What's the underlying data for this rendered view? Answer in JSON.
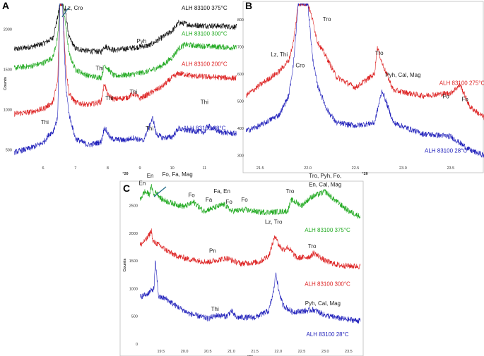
{
  "colors": {
    "black": "#111111",
    "green": "#22aa22",
    "red": "#dd2222",
    "blue": "#2222bb",
    "leader": "#1e6a86"
  },
  "chart_data": [
    {
      "panel": "A",
      "type": "line",
      "xlabel": "°2θ",
      "ylabel": "Counts",
      "xlim": [
        5.1,
        12.0
      ],
      "ylim": [
        330,
        2320
      ],
      "xticks": [
        "6",
        "7",
        "8",
        "9",
        "10",
        "11"
      ],
      "yticks": [
        "500",
        "1000",
        "1500",
        "2000"
      ],
      "series": [
        {
          "name": "ALH 83100 375°C",
          "color": "black",
          "base": 1650,
          "label_x": 11.0,
          "label_y": 2240,
          "x": [
            5.1,
            5.6,
            6.0,
            6.3,
            6.45,
            6.52,
            6.6,
            6.7,
            6.8,
            7.0,
            7.4,
            7.8,
            7.9,
            8.2,
            8.8,
            9.3,
            9.7,
            10.0,
            10.2,
            10.4,
            10.6,
            11.0,
            11.5,
            12.0
          ],
          "y": [
            1750,
            1780,
            1820,
            1890,
            2150,
            2320,
            2320,
            2200,
            1900,
            1760,
            1730,
            1720,
            1790,
            1740,
            1770,
            1800,
            1900,
            1980,
            2080,
            2070,
            2050,
            2045,
            2040,
            2030
          ]
        },
        {
          "name": "ALH 83100 300°C",
          "color": "green",
          "base": 1380,
          "label_x": 11.0,
          "label_y": 1920,
          "x": [
            5.1,
            5.6,
            6.0,
            6.3,
            6.45,
            6.52,
            6.6,
            6.7,
            6.8,
            7.0,
            7.4,
            7.8,
            7.9,
            8.2,
            8.8,
            9.3,
            9.7,
            10.0,
            10.2,
            10.4,
            10.6,
            11.0,
            11.5,
            12.0
          ],
          "y": [
            1520,
            1540,
            1580,
            1650,
            1900,
            2320,
            2320,
            2050,
            1700,
            1500,
            1420,
            1400,
            1560,
            1420,
            1440,
            1480,
            1550,
            1650,
            1760,
            1810,
            1800,
            1790,
            1780,
            1770
          ]
        },
        {
          "name": "ALH 83100 200°C",
          "color": "red",
          "base": 1050,
          "label_x": 11.0,
          "label_y": 1545,
          "x": [
            5.1,
            5.6,
            6.0,
            6.3,
            6.45,
            6.52,
            6.6,
            6.7,
            6.8,
            7.0,
            7.4,
            7.8,
            7.9,
            8.0,
            8.2,
            8.6,
            8.8,
            9.0,
            9.3,
            9.7,
            10.0,
            10.2,
            10.4,
            10.6,
            11.0,
            11.5,
            12.0
          ],
          "y": [
            950,
            970,
            1010,
            1090,
            1350,
            2320,
            2320,
            1550,
            1200,
            1090,
            1060,
            1100,
            1330,
            1180,
            1130,
            1150,
            1200,
            1140,
            1200,
            1290,
            1400,
            1450,
            1440,
            1420,
            1410,
            1400,
            1390
          ]
        },
        {
          "name": "ALH 83100 28°C",
          "color": "blue",
          "base": 450,
          "label_x": 11.0,
          "label_y": 745,
          "x": [
            5.1,
            5.6,
            6.0,
            6.2,
            6.3,
            6.45,
            6.52,
            6.6,
            6.7,
            6.8,
            7.0,
            7.4,
            7.8,
            7.9,
            8.1,
            8.5,
            8.8,
            9.1,
            9.4,
            9.5,
            9.7,
            10.0,
            10.2,
            10.3,
            10.5,
            10.8,
            11.0,
            11.1,
            11.5,
            12.0
          ],
          "y": [
            470,
            520,
            590,
            700,
            720,
            900,
            2320,
            2320,
            1300,
            950,
            640,
            560,
            600,
            780,
            640,
            620,
            650,
            610,
            900,
            700,
            650,
            660,
            770,
            750,
            740,
            730,
            720,
            800,
            720,
            700
          ]
        }
      ],
      "annotations": [
        {
          "text": "Lz, Cro",
          "x": 6.95,
          "y": 2240
        },
        {
          "text": "Pyh",
          "x": 9.05,
          "y": 1830
        },
        {
          "text": "Thi",
          "x": 7.75,
          "y": 1490
        },
        {
          "text": "Thi",
          "x": 8.05,
          "y": 1120
        },
        {
          "text": "Thi",
          "x": 8.8,
          "y": 1200
        },
        {
          "text": "Thi",
          "x": 6.05,
          "y": 820
        },
        {
          "text": "Thi",
          "x": 9.3,
          "y": 740
        },
        {
          "text": "Thi",
          "x": 11.0,
          "y": 1070
        }
      ]
    },
    {
      "panel": "B",
      "type": "line",
      "xlabel": "°2θ",
      "ylabel": "",
      "xlim": [
        21.35,
        23.85
      ],
      "ylim": [
        270,
        860
      ],
      "xticks": [
        "21.5",
        "22.0",
        "22.5",
        "23.0",
        "23.5"
      ],
      "yticks": [
        "300",
        "400",
        "500",
        "600",
        "700",
        "800"
      ],
      "series": [
        {
          "name": "ALH 83100 275°C",
          "color": "red",
          "base": 560,
          "label_x": 23.62,
          "label_y": 560,
          "x": [
            21.35,
            21.5,
            21.7,
            21.8,
            21.85,
            21.9,
            21.95,
            22.0,
            22.05,
            22.1,
            22.2,
            22.3,
            22.5,
            22.7,
            22.73,
            22.78,
            22.9,
            23.2,
            23.5,
            23.6,
            23.7,
            23.85
          ],
          "y": [
            520,
            560,
            610,
            650,
            720,
            860,
            860,
            860,
            800,
            720,
            660,
            590,
            550,
            600,
            700,
            640,
            540,
            520,
            530,
            560,
            480,
            440
          ]
        },
        {
          "name": "ALH 83100 28°C",
          "color": "blue",
          "base": 390,
          "label_x": 23.45,
          "label_y": 310,
          "x": [
            21.35,
            21.5,
            21.7,
            21.8,
            21.85,
            21.9,
            21.95,
            22.0,
            22.05,
            22.1,
            22.2,
            22.3,
            22.5,
            22.7,
            22.78,
            22.9,
            23.2,
            23.5,
            23.7,
            23.85
          ],
          "y": [
            390,
            410,
            450,
            520,
            640,
            860,
            860,
            860,
            660,
            560,
            470,
            420,
            410,
            420,
            540,
            420,
            380,
            370,
            320,
            300
          ]
        }
      ],
      "annotations": [
        {
          "text": "Lz, Thi",
          "x": 21.7,
          "y": 665
        },
        {
          "text": "Cro",
          "x": 21.92,
          "y": 625
        },
        {
          "text": "Tro",
          "x": 22.2,
          "y": 795
        },
        {
          "text": "Tro",
          "x": 22.75,
          "y": 670
        },
        {
          "text": "Pyh, Cal, Mag",
          "x": 23.0,
          "y": 590
        },
        {
          "text": "Fo",
          "x": 23.45,
          "y": 510
        },
        {
          "text": "Fo",
          "x": 23.65,
          "y": 500
        }
      ]
    },
    {
      "panel": "C",
      "type": "line",
      "xlabel": "°2θ",
      "ylabel": "Counts",
      "xlim": [
        19.05,
        23.75
      ],
      "ylim": [
        -50,
        2900
      ],
      "xticks": [
        "19.5",
        "20.0",
        "20.5",
        "21.0",
        "21.5",
        "22.0",
        "22.5",
        "23.0",
        "23.5"
      ],
      "yticks": [
        "0",
        "500",
        "1000",
        "1500",
        "2000",
        "2500"
      ],
      "series": [
        {
          "name": "ALH 83100 375°C",
          "color": "green",
          "base": 2350,
          "label_x": 23.05,
          "label_y": 2020,
          "x": [
            19.05,
            19.15,
            19.25,
            19.3,
            19.35,
            19.4,
            19.5,
            19.7,
            20.0,
            20.2,
            20.4,
            20.6,
            20.85,
            21.0,
            21.3,
            21.6,
            21.9,
            22.2,
            22.28,
            22.5,
            22.7,
            23.0,
            23.2,
            23.5,
            23.75
          ],
          "y": [
            2600,
            2750,
            2700,
            2850,
            2680,
            2750,
            2620,
            2550,
            2480,
            2560,
            2400,
            2450,
            2520,
            2400,
            2420,
            2380,
            2380,
            2400,
            2600,
            2500,
            2650,
            2750,
            2600,
            2400,
            2300
          ]
        },
        {
          "name": "ALH 83100 300°C",
          "color": "red",
          "base": 1600,
          "label_x": 23.05,
          "label_y": 1050,
          "x": [
            19.05,
            19.2,
            19.3,
            19.32,
            19.4,
            19.6,
            19.8,
            20.1,
            20.5,
            20.9,
            21.2,
            21.6,
            21.8,
            21.9,
            21.95,
            22.0,
            22.1,
            22.2,
            22.4,
            22.7,
            22.75,
            23.0,
            23.3,
            23.75
          ],
          "y": [
            1780,
            1900,
            2050,
            1850,
            1820,
            1700,
            1600,
            1530,
            1480,
            1550,
            1450,
            1480,
            1600,
            1870,
            1960,
            1800,
            1700,
            1750,
            1550,
            1580,
            1650,
            1500,
            1420,
            1400
          ]
        },
        {
          "name": "ALH 83100 28°C",
          "color": "blue",
          "base": 550,
          "label_x": 23.05,
          "label_y": 140,
          "x": [
            19.05,
            19.2,
            19.35,
            19.38,
            19.45,
            19.6,
            19.8,
            20.1,
            20.5,
            20.7,
            20.9,
            21.0,
            21.1,
            21.5,
            21.8,
            21.9,
            21.95,
            22.0,
            22.1,
            22.3,
            22.6,
            22.75,
            23.0,
            23.4,
            23.75
          ],
          "y": [
            850,
            900,
            1000,
            1480,
            850,
            820,
            700,
            550,
            460,
            520,
            500,
            600,
            480,
            480,
            600,
            950,
            1300,
            1000,
            700,
            580,
            600,
            620,
            520,
            450,
            420
          ]
        }
      ],
      "annotations": [
        {
          "text": "En",
          "x": 19.1,
          "y": 2870
        },
        {
          "text": "En",
          "x": 19.27,
          "y": 3000
        },
        {
          "text": "Fo, Fa, Mag",
          "x": 19.85,
          "y": 3030
        },
        {
          "text": "Fo",
          "x": 20.15,
          "y": 2650
        },
        {
          "text": "Fa",
          "x": 20.52,
          "y": 2570
        },
        {
          "text": "Fa, En",
          "x": 20.8,
          "y": 2720
        },
        {
          "text": "Fo",
          "x": 20.95,
          "y": 2530
        },
        {
          "text": "Fo",
          "x": 21.28,
          "y": 2570
        },
        {
          "text": "Tro",
          "x": 22.25,
          "y": 2720
        },
        {
          "text": "Tro, Pyh, Fo,",
          "x": 23.0,
          "y": 3000
        },
        {
          "text": "En, Cal, Mag",
          "x": 23.0,
          "y": 2840
        },
        {
          "text": "Lz, Tro",
          "x": 21.9,
          "y": 2170
        },
        {
          "text": "Pn",
          "x": 20.6,
          "y": 1650
        },
        {
          "text": "Tro",
          "x": 22.72,
          "y": 1730
        },
        {
          "text": "Thi",
          "x": 20.65,
          "y": 600
        },
        {
          "text": "Pyh, Cal, Mag",
          "x": 22.95,
          "y": 700
        }
      ]
    }
  ]
}
